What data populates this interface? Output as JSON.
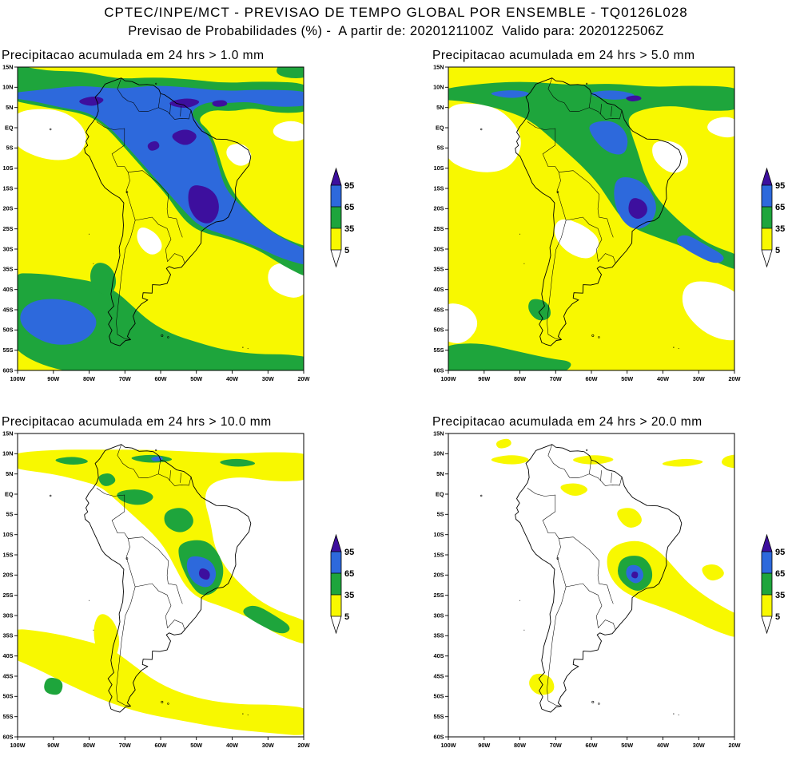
{
  "header": {
    "line1": "CPTEC/INPE/MCT - PREVISAO DE TEMPO GLOBAL POR ENSEMBLE - TQ0126L028",
    "line2": "Previsao de Probabilidades (%) -  A partir de: 2020121100Z  Valido para: 2020122506Z"
  },
  "panels": [
    {
      "title": "Precipitacao acumulada em 24 hrs > 1.0 mm",
      "threshold_mm": 1.0
    },
    {
      "title": "Precipitacao acumulada em 24 hrs > 5.0 mm",
      "threshold_mm": 5.0
    },
    {
      "title": "Precipitacao acumulada em 24 hrs > 10.0 mm",
      "threshold_mm": 10.0
    },
    {
      "title": "Precipitacao acumulada em 24 hrs > 20.0 mm",
      "threshold_mm": 20.0
    }
  ],
  "axes": {
    "lat_labels": [
      "15N",
      "10N",
      "5N",
      "EQ",
      "5S",
      "10S",
      "15S",
      "20S",
      "25S",
      "30S",
      "35S",
      "40S",
      "45S",
      "50S",
      "55S",
      "60S"
    ],
    "lon_labels": [
      "100W",
      "90W",
      "80W",
      "70W",
      "60W",
      "50W",
      "40W",
      "30W",
      "20W"
    ]
  },
  "colorbar": {
    "tick_labels": [
      "95",
      "65",
      "35",
      "5"
    ],
    "levels": [
      {
        "key": "p95",
        "label": "> 95",
        "color": "#3D0F9E"
      },
      {
        "key": "p65",
        "label": "65 - 95",
        "color": "#2D69DC"
      },
      {
        "key": "p35",
        "label": "35 - 65",
        "color": "#1EA53C"
      },
      {
        "key": "p5",
        "label": "5 - 35",
        "color": "#F8F800"
      },
      {
        "key": "p0",
        "label": "< 5",
        "color": "#FFFFFF"
      }
    ]
  },
  "chart_data": {
    "type": "heatmap",
    "title": "CPTEC/INPE/MCT - PREVISAO DE TEMPO GLOBAL POR ENSEMBLE - TQ0126L028",
    "subtitle": "Previsao de Probabilidades (%) - A partir de: 2020121100Z Valido para: 2020122506Z",
    "variable": "Probability (%) that 24-h accumulated precipitation exceeds the panel threshold",
    "model": "Global ensemble TQ0126L028",
    "init_time": "2020121100Z",
    "valid_time": "2020122506Z",
    "lon_range": [
      "100W",
      "20W"
    ],
    "lat_range": [
      "60S",
      "15N"
    ],
    "probability_levels_percent": [
      5,
      35,
      65,
      95
    ],
    "level_colors": {
      "over_95": "#3D0F9E",
      "65_to_95": "#2D69DC",
      "35_to_65": "#1EA53C",
      "5_to_35": "#F8F800",
      "under_5": "#FFFFFF"
    },
    "panels": [
      {
        "threshold_mm": 1.0,
        "summary": "Probabilities above 65% (blue) cover the ITCZ band (about 2N-10N) from the Pacific across northern South America and the adjacent Atlantic, most of Amazonia and a band from central Brazil to the southwest Atlantic; cores above 95% (purple) near 80W/7N, 55W/6N and over central-east Brazil around 48W/19S; 35-65% (green) over Patagonia, southern Chile and the far South Atlantic with a blue patch near 88W/48S; below 35% (yellow/white) over the eastern equatorial Pacific, coastal northeast Brazil and central Argentina."
      },
      {
        "threshold_mm": 5.0,
        "summary": "Similar pattern but weaker: green (35-65%) dominates the ITCZ band and Amazonia with embedded blue (65-95%) patches; a blue core with a small purple (>95%) maximum persists over central-east Brazil near 47W/20S; yellow (5-35%) expands over Argentina, Patagonia and the subtropical oceans; white (<5%) over the eastern Pacific, northeast Brazil, central Argentina and parts of the southern oceans."
      },
      {
        "threshold_mm": 10.0,
        "summary": "Mostly yellow (5-35%) along the ITCZ band, Amazonia, a central Brazil to southwest Atlantic band and the mid-latitude storm track; scattered green (35-65%) patches; a blue (65-95%) core with a tiny purple spot over southeast Brazil near 47W/19S; large white (<5%) areas over the eastern Pacific, northeast Brazil and Argentina."
      },
      {
        "threshold_mm": 20.0,
        "summary": "Mostly white (below 5%); scattered yellow (5-35%) patches along the ITCZ, Amazonia and a band from central Brazil to the adjacent Atlantic; the only organized maximum is over southeast Brazil near 47W/20S with green and blue and a tiny purple core."
      }
    ]
  }
}
